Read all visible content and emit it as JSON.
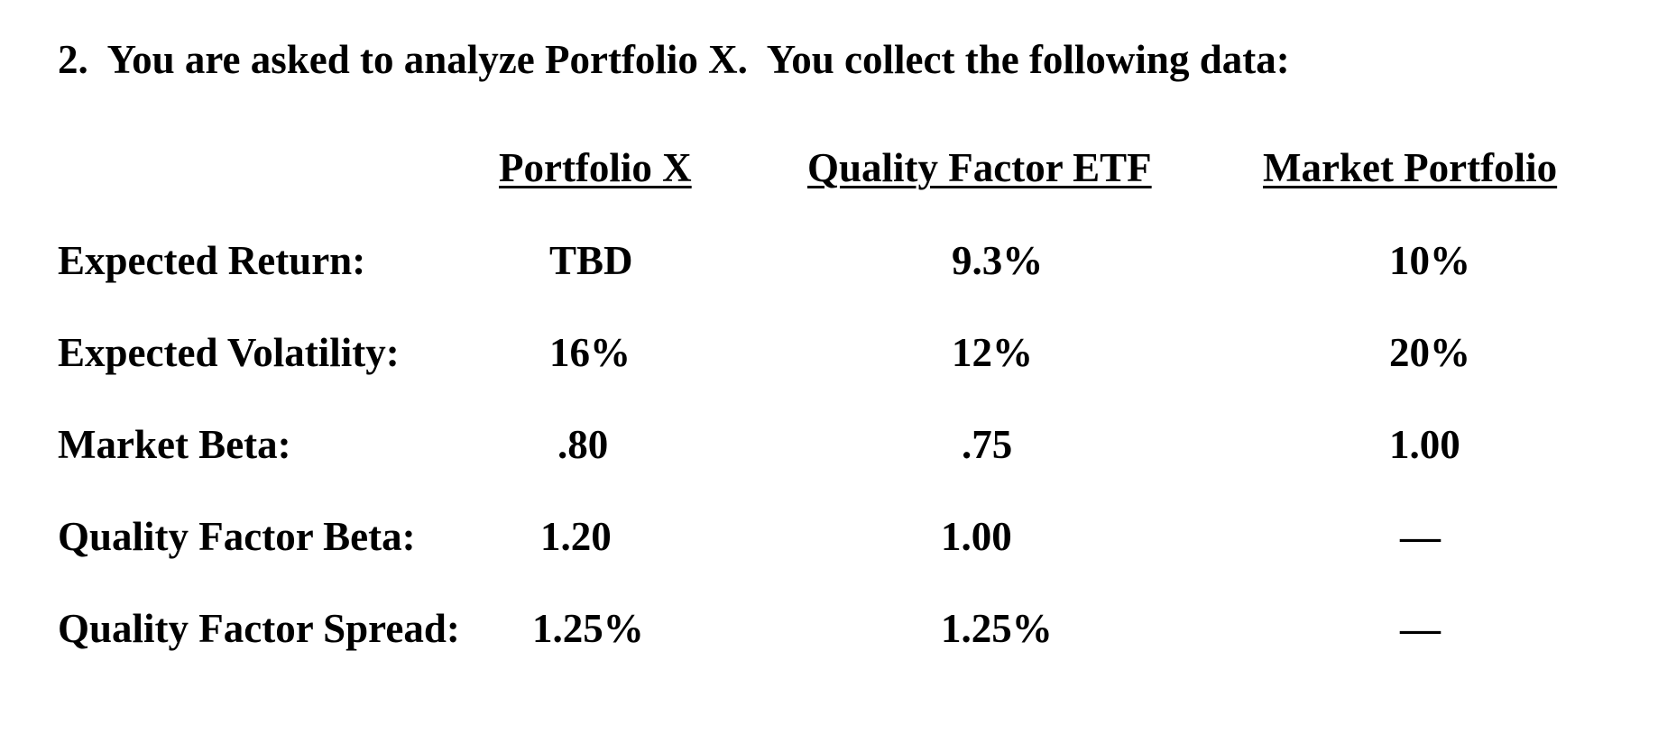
{
  "question": "2.  You are asked to analyze Portfolio X.  You collect the following data:",
  "columns": [
    "Portfolio X",
    "Quality Factor ETF",
    "Market Portfolio"
  ],
  "rows": [
    {
      "label": "Expected Return:",
      "values": [
        "TBD",
        "9.3%",
        "10%"
      ]
    },
    {
      "label": "Expected Volatility:",
      "values": [
        "16%",
        "12%",
        "20%"
      ]
    },
    {
      "label": "Market Beta:",
      "values": [
        ".80",
        ".75",
        "1.00"
      ]
    },
    {
      "label": "Quality Factor Beta:",
      "values": [
        "1.20",
        "1.00",
        "—"
      ]
    },
    {
      "label": "Quality Factor Spread:",
      "values": [
        "1.25%",
        "1.25%",
        "—"
      ]
    }
  ]
}
